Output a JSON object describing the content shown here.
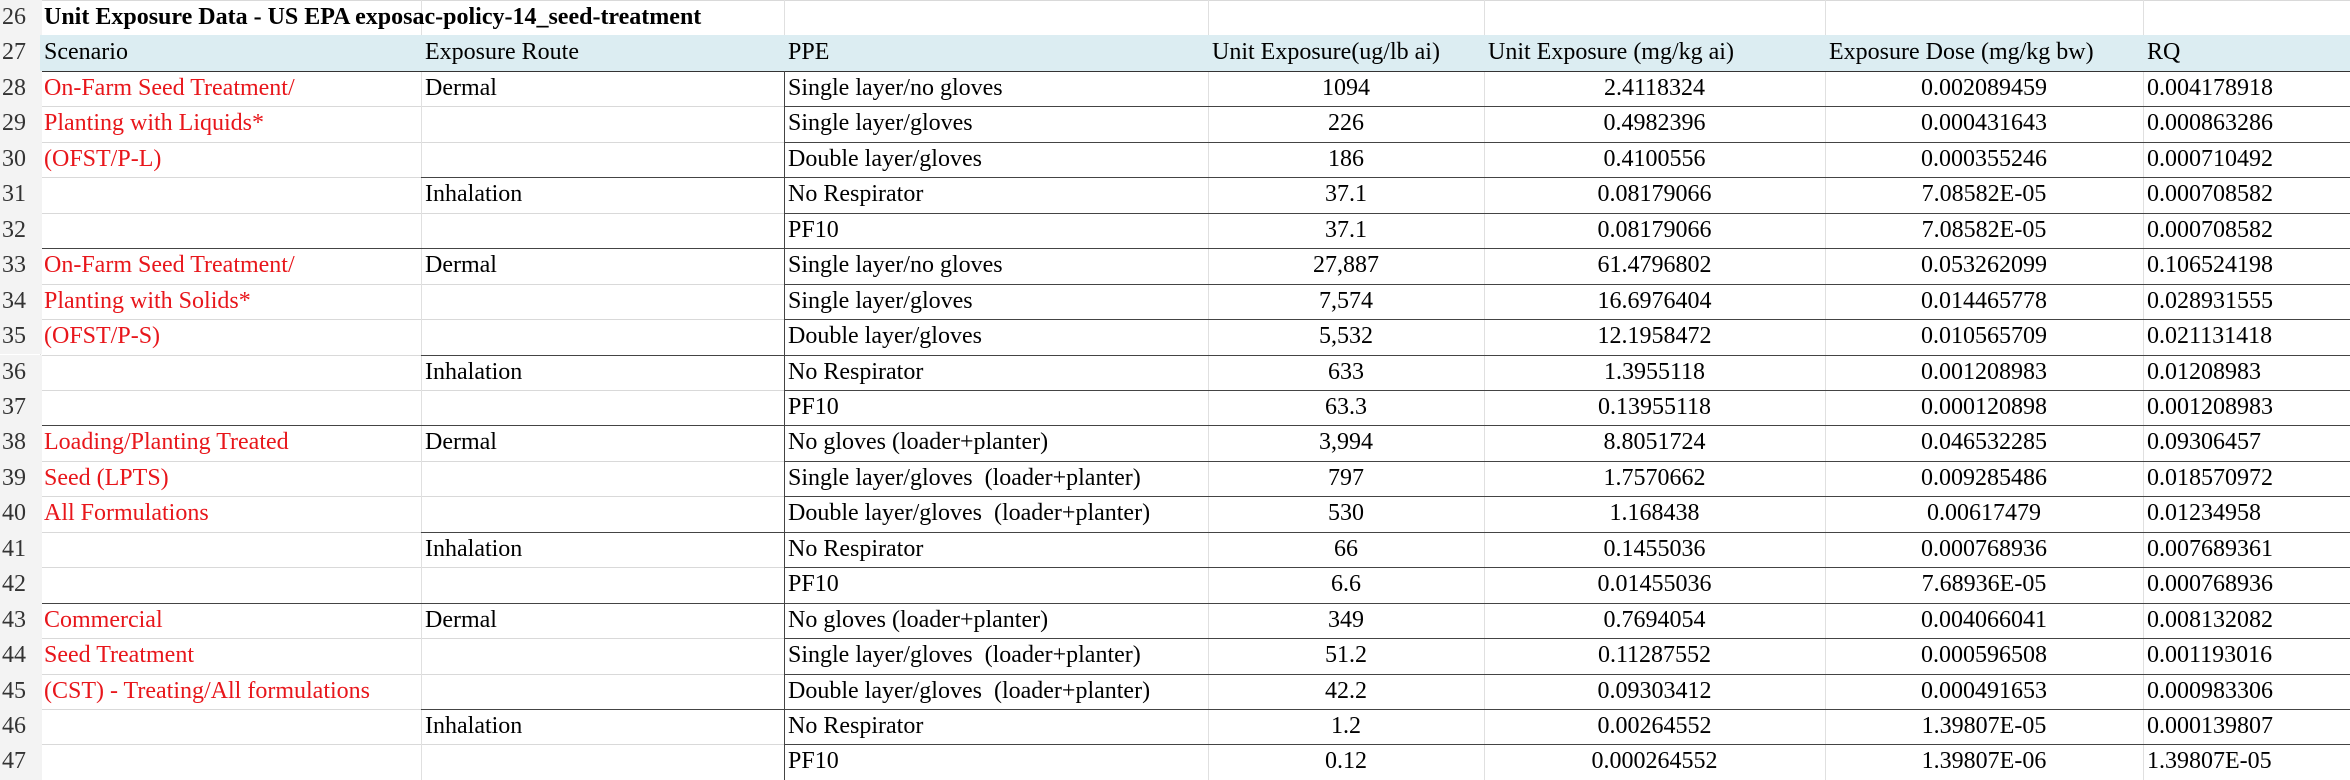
{
  "title_row": {
    "row_number": "26",
    "title": "Unit Exposure Data - US EPA exposac-policy-14_seed-treatment"
  },
  "header": {
    "row_number": "27",
    "columns": [
      "Scenario",
      "Exposure Route",
      "PPE",
      "Unit Exposure(ug/lb ai)",
      "Unit Exposure (mg/kg ai)",
      "Exposure Dose (mg/kg bw)",
      "RQ"
    ]
  },
  "groups": [
    {
      "scenario_lines": [
        "On-Farm Seed Treatment/",
        "Planting with Liquids*",
        "(OFST/P-L)"
      ],
      "routes": [
        {
          "route": "Dermal",
          "rows": [
            {
              "row_number": "28",
              "ppe": "Single layer/no gloves",
              "cells": [
                "1094",
                "2.4118324",
                "0.002089459",
                "0.004178918"
              ]
            },
            {
              "row_number": "29",
              "ppe": "Single layer/gloves",
              "cells": [
                "226",
                "0.4982396",
                "0.000431643",
                "0.000863286"
              ]
            },
            {
              "row_number": "30",
              "ppe": "Double layer/gloves",
              "cells": [
                "186",
                "0.4100556",
                "0.000355246",
                "0.000710492"
              ]
            }
          ]
        },
        {
          "route": "Inhalation",
          "rows": [
            {
              "row_number": "31",
              "ppe": "No Respirator",
              "cells": [
                "37.1",
                "0.08179066",
                "7.08582E-05",
                "0.000708582"
              ]
            },
            {
              "row_number": "32",
              "ppe": "PF10",
              "cells": [
                "37.1",
                "0.08179066",
                "7.08582E-05",
                "0.000708582"
              ]
            }
          ]
        }
      ]
    },
    {
      "scenario_lines": [
        "On-Farm Seed Treatment/",
        "Planting with Solids*",
        "(OFST/P-S)"
      ],
      "routes": [
        {
          "route": "Dermal",
          "rows": [
            {
              "row_number": "33",
              "ppe": "Single layer/no gloves",
              "cells": [
                "27,887",
                "61.4796802",
                "0.053262099",
                "0.106524198"
              ]
            },
            {
              "row_number": "34",
              "ppe": "Single layer/gloves",
              "cells": [
                "7,574",
                "16.6976404",
                "0.014465778",
                "0.028931555"
              ]
            },
            {
              "row_number": "35",
              "ppe": "Double layer/gloves",
              "cells": [
                "5,532",
                "12.1958472",
                "0.010565709",
                "0.021131418"
              ]
            }
          ]
        },
        {
          "route": "Inhalation",
          "rows": [
            {
              "row_number": "36",
              "ppe": "No Respirator",
              "cells": [
                "633",
                "1.3955118",
                "0.001208983",
                "0.01208983"
              ]
            },
            {
              "row_number": "37",
              "ppe": "PF10",
              "cells": [
                "63.3",
                "0.13955118",
                "0.000120898",
                "0.001208983"
              ]
            }
          ]
        }
      ]
    },
    {
      "scenario_lines": [
        "Loading/Planting Treated",
        "Seed (LPTS)",
        "All Formulations"
      ],
      "routes": [
        {
          "route": "Dermal",
          "rows": [
            {
              "row_number": "38",
              "ppe": "No gloves (loader+planter)",
              "cells": [
                "3,994",
                "8.8051724",
                "0.046532285",
                "0.09306457"
              ]
            },
            {
              "row_number": "39",
              "ppe": "Single layer/gloves  (loader+planter)",
              "cells": [
                "797",
                "1.7570662",
                "0.009285486",
                "0.018570972"
              ]
            },
            {
              "row_number": "40",
              "ppe": "Double layer/gloves  (loader+planter)",
              "cells": [
                "530",
                "1.168438",
                "0.00617479",
                "0.01234958"
              ]
            }
          ]
        },
        {
          "route": "Inhalation",
          "rows": [
            {
              "row_number": "41",
              "ppe": "No Respirator",
              "cells": [
                "66",
                "0.1455036",
                "0.000768936",
                "0.007689361"
              ]
            },
            {
              "row_number": "42",
              "ppe": "PF10",
              "cells": [
                "6.6",
                "0.01455036",
                "7.68936E-05",
                "0.000768936"
              ]
            }
          ]
        }
      ]
    },
    {
      "scenario_lines": [
        "Commercial",
        "Seed Treatment",
        "(CST) - Treating/All formulations"
      ],
      "routes": [
        {
          "route": "Dermal",
          "rows": [
            {
              "row_number": "43",
              "ppe": "No gloves (loader+planter)",
              "cells": [
                "349",
                "0.7694054",
                "0.004066041",
                "0.008132082"
              ]
            },
            {
              "row_number": "44",
              "ppe": "Single layer/gloves  (loader+planter)",
              "cells": [
                "51.2",
                "0.11287552",
                "0.000596508",
                "0.001193016"
              ]
            },
            {
              "row_number": "45",
              "ppe": "Double layer/gloves  (loader+planter)",
              "cells": [
                "42.2",
                "0.09303412",
                "0.000491653",
                "0.000983306"
              ]
            }
          ]
        },
        {
          "route": "Inhalation",
          "rows": [
            {
              "row_number": "46",
              "ppe": "No Respirator",
              "cells": [
                "1.2",
                "0.00264552",
                "1.39807E-05",
                "0.000139807"
              ]
            },
            {
              "row_number": "47",
              "ppe": "PF10",
              "cells": [
                "0.12",
                "0.000264552",
                "1.39807E-06",
                "1.39807E-05"
              ]
            }
          ]
        }
      ]
    }
  ]
}
